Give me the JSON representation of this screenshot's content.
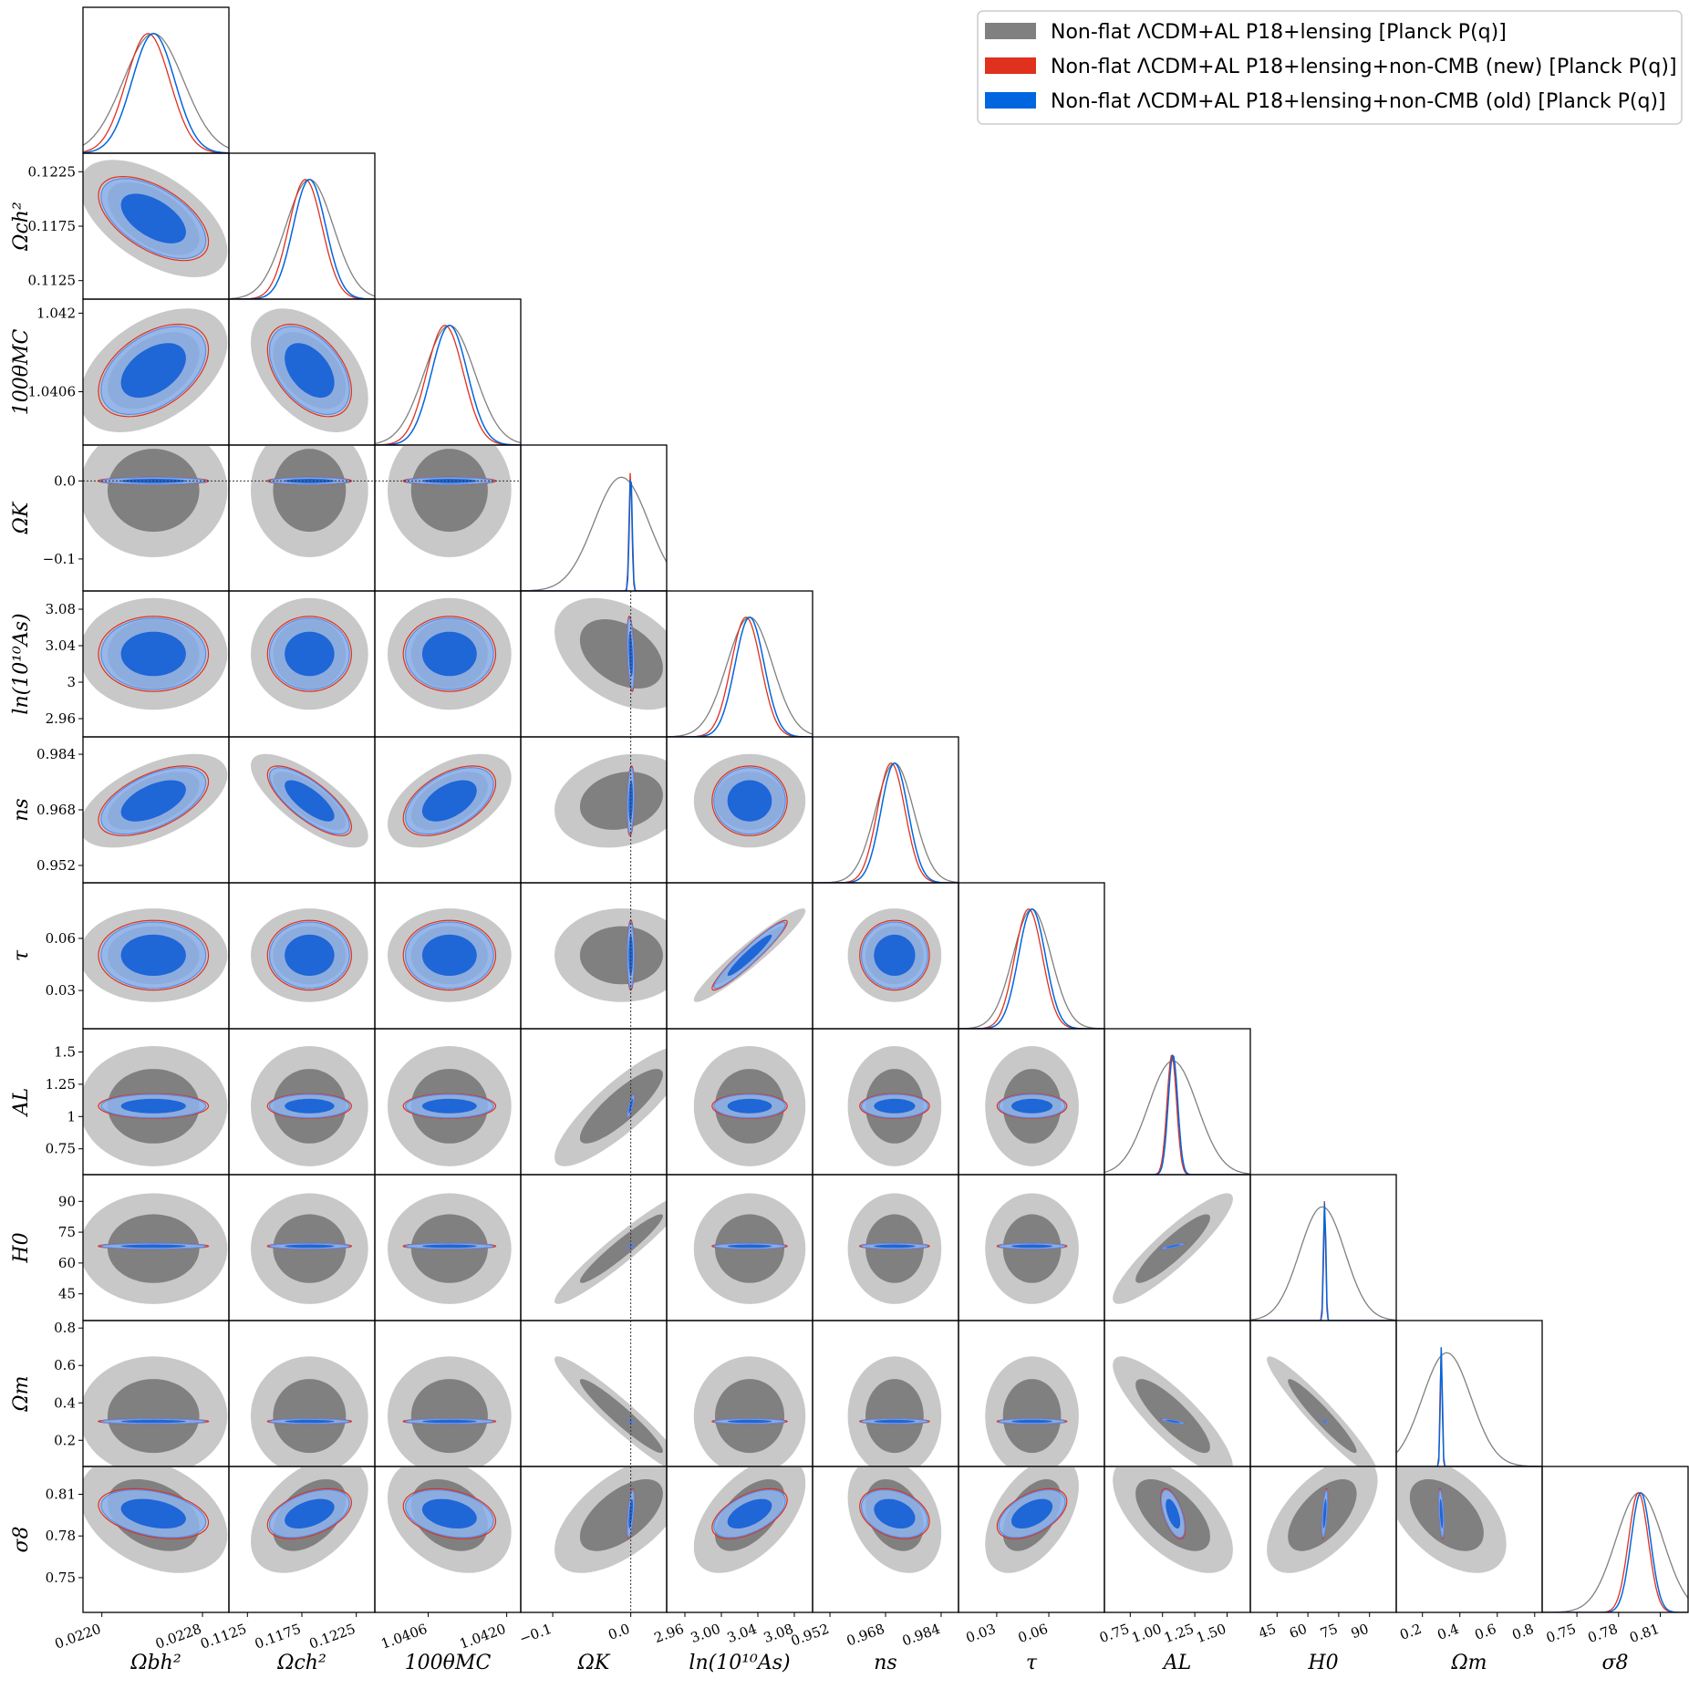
{
  "chart_data": {
    "type": "triangle",
    "params": [
      {
        "label": "Ωbh²",
        "ticks": [
          0.022,
          0.0228
        ],
        "tick_labels": [
          "0.0220",
          "0.0228"
        ],
        "range": [
          0.02185,
          0.02301
        ],
        "center": 0.02241,
        "sigma": 0.00017
      },
      {
        "label": "Ωch²",
        "ticks": [
          0.1125,
          0.1175,
          0.1225
        ],
        "tick_labels": [
          "0.1125",
          "0.1175",
          "0.1225"
        ],
        "range": [
          0.1108,
          0.1242
        ],
        "center": 0.1182,
        "sigma": 0.0015
      },
      {
        "label": "100θMC",
        "ticks": [
          1.0406,
          1.042
        ],
        "tick_labels": [
          "1.0406",
          "1.042"
        ],
        "range": [
          1.03965,
          1.04225
        ],
        "center": 1.04098,
        "sigma": 0.00032
      },
      {
        "label": "ΩK",
        "ticks": [
          -0.1,
          0.0
        ],
        "tick_labels": [
          "−0.1",
          "0.0"
        ],
        "range": [
          -0.141,
          0.046
        ],
        "center": 0.0,
        "sigma": 0.0018
      },
      {
        "label": "ln(10¹⁰As)",
        "ticks": [
          2.96,
          3.0,
          3.04,
          3.08
        ],
        "tick_labels": [
          "2.96",
          "3",
          "3.04",
          "3.08"
        ],
        "range": [
          2.94,
          3.1
        ],
        "center": 3.031,
        "sigma": 0.016
      },
      {
        "label": "ns",
        "ticks": [
          0.952,
          0.968,
          0.984
        ],
        "tick_labels": [
          "0.952",
          "0.968",
          "0.984"
        ],
        "range": [
          0.947,
          0.989
        ],
        "center": 0.9706,
        "sigma": 0.0039
      },
      {
        "label": "τ",
        "ticks": [
          0.03,
          0.06
        ],
        "tick_labels": [
          "0.03",
          "0.06"
        ],
        "range": [
          0.008,
          0.092
        ],
        "center": 0.0503,
        "sigma": 0.0078
      },
      {
        "label": "AL",
        "ticks": [
          0.75,
          1.0,
          1.25,
          1.5
        ],
        "tick_labels": [
          "0.75",
          "1",
          "1.25",
          "1.5"
        ],
        "range": [
          0.55,
          1.68
        ],
        "center": 1.081,
        "sigma": 0.037
      },
      {
        "label": "H0",
        "ticks": [
          45,
          60,
          75,
          90
        ],
        "tick_labels": [
          "45",
          "60",
          "75",
          "90"
        ],
        "range": [
          32,
          103
        ],
        "center": 68.2,
        "sigma": 0.55
      },
      {
        "label": "Ωm",
        "ticks": [
          0.2,
          0.4,
          0.6,
          0.8
        ],
        "tick_labels": [
          "0.2",
          "0.4",
          "0.6",
          "0.8"
        ],
        "range": [
          0.06,
          0.84
        ],
        "center": 0.301,
        "sigma": 0.0055
      },
      {
        "label": "σ8",
        "ticks": [
          0.75,
          0.78,
          0.81
        ],
        "tick_labels": [
          "0.75",
          "0.78",
          "0.81"
        ],
        "range": [
          0.725,
          0.83
        ],
        "center": 0.796,
        "sigma": 0.007
      }
    ],
    "x_tick_labels": [
      [
        "0.0220",
        "0.0228"
      ],
      [
        "0.1125",
        "0.1175",
        "0.1225"
      ],
      [
        "1.0406",
        "1.0420"
      ],
      [
        "−0.1",
        "0.0"
      ],
      [
        "2.96",
        "3.00",
        "3.04",
        "3.08"
      ],
      [
        "0.952",
        "0.968",
        "0.984"
      ],
      [
        "0.03",
        "0.06"
      ],
      [
        "0.75",
        "1.00",
        "1.25",
        "1.50"
      ],
      [
        "45",
        "60",
        "75",
        "90"
      ],
      [
        "0.2",
        "0.4",
        "0.6",
        "0.8"
      ],
      [
        "0.75",
        "0.78",
        "0.81"
      ]
    ],
    "series": [
      {
        "name": "Non-flat ΛCDM+AL P18+lensing [Planck P(q)]",
        "color": "#808080"
      },
      {
        "name": "Non-flat ΛCDM+AL P18+lensing+non-CMB (new) [Planck P(q)]",
        "color": "#e0301e"
      },
      {
        "name": "Non-flat ΛCDM+AL P18+lensing+non-CMB (old) [Planck P(q)]",
        "color": "#0066e0"
      }
    ],
    "reference_line": {
      "param": "ΩK",
      "value": 0.0
    },
    "legend_position": "top-right"
  }
}
